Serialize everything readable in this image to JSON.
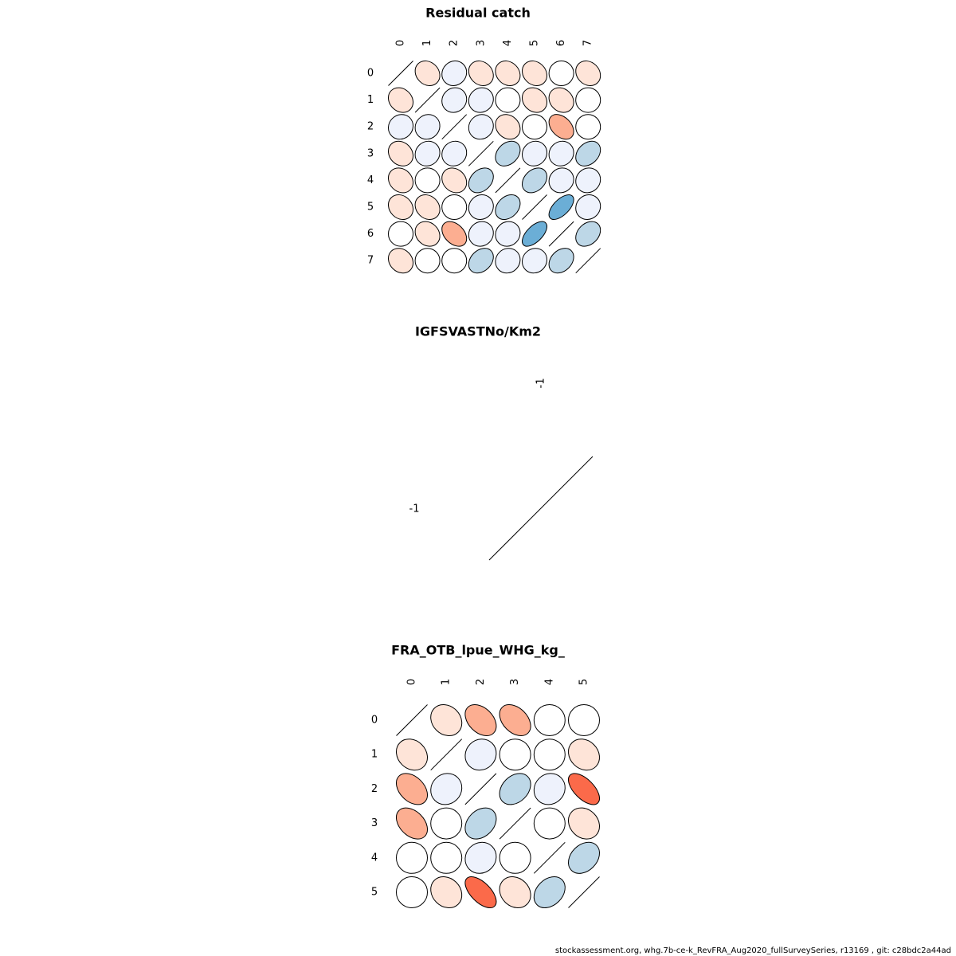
{
  "footer": "stockassessment.org, whg.7b-ce-k_RevFRA_Aug2020_fullSurveySeries, r13169 , git: c28bdc2a44ad",
  "chart_data": [
    {
      "type": "heatmap",
      "title": "Residual catch",
      "labels": [
        "0",
        "1",
        "2",
        "3",
        "4",
        "5",
        "6",
        "7"
      ],
      "values": [
        [
          1,
          -0.18,
          0.08,
          -0.18,
          -0.18,
          -0.18,
          0,
          -0.18
        ],
        [
          -0.18,
          1,
          0.08,
          0.08,
          0,
          -0.18,
          -0.18,
          0
        ],
        [
          0.08,
          0.08,
          1,
          0.08,
          -0.18,
          0,
          -0.38,
          0
        ],
        [
          -0.18,
          0.08,
          0.08,
          1,
          0.3,
          0.08,
          0.08,
          0.3
        ],
        [
          -0.18,
          0,
          -0.18,
          0.3,
          1,
          0.3,
          0.08,
          0.08
        ],
        [
          -0.18,
          -0.18,
          0,
          0.08,
          0.3,
          1,
          0.6,
          0.08
        ],
        [
          0,
          -0.18,
          -0.38,
          0.08,
          0.08,
          0.6,
          1,
          0.3
        ],
        [
          -0.18,
          0,
          0,
          0.3,
          0.08,
          0.08,
          0.3,
          1
        ]
      ]
    },
    {
      "type": "heatmap",
      "title": "IGFSVASTNo/Km2",
      "labels": [
        "-1"
      ],
      "values": [
        [
          1
        ]
      ]
    },
    {
      "type": "heatmap",
      "title": "FRA_OTB_lpue_WHG_kg_",
      "labels": [
        "0",
        "1",
        "2",
        "3",
        "4",
        "5"
      ],
      "values": [
        [
          1,
          -0.18,
          -0.38,
          -0.38,
          0,
          0
        ],
        [
          -0.18,
          1,
          0.08,
          0,
          0,
          -0.18
        ],
        [
          -0.38,
          0.08,
          1,
          0.3,
          0.08,
          -0.6
        ],
        [
          -0.38,
          0,
          0.3,
          1,
          0,
          -0.18
        ],
        [
          0,
          0,
          0.08,
          0,
          1,
          0.3
        ],
        [
          0,
          -0.18,
          -0.6,
          -0.18,
          0.3,
          1
        ]
      ]
    }
  ]
}
